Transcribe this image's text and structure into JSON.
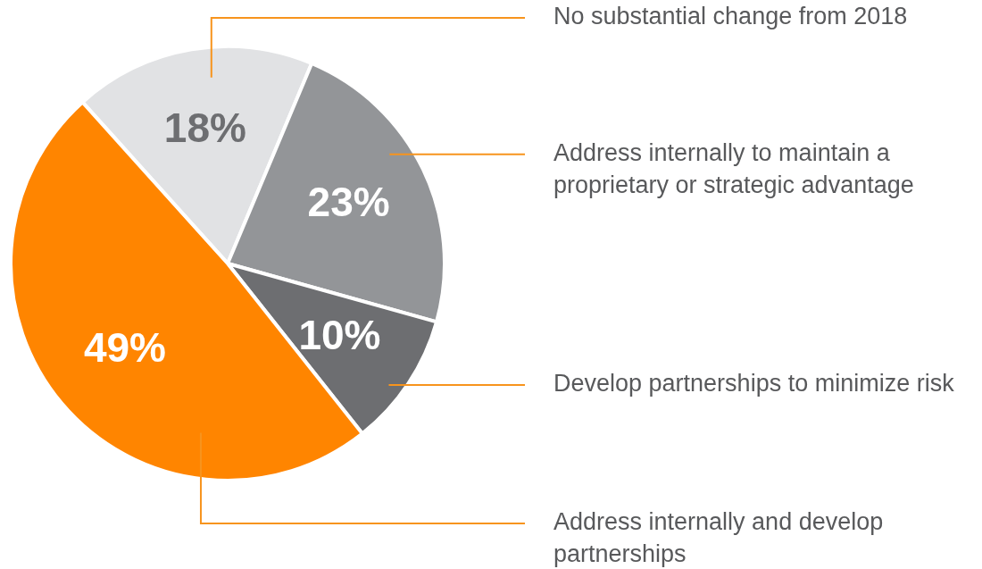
{
  "chart_data": {
    "type": "pie",
    "categories": [
      "No substantial change from 2018",
      "Address internally to maintain a proprietary or strategic advantage",
      "Develop partnerships to minimize risk",
      "Address internally and develop partnerships"
    ],
    "values": [
      18,
      23,
      10,
      49
    ],
    "colors": [
      "#e1e2e4",
      "#939598",
      "#6d6e71",
      "#ff8500"
    ],
    "value_labels": [
      "18%",
      "23%",
      "10%",
      "49%"
    ],
    "legend": false
  }
}
